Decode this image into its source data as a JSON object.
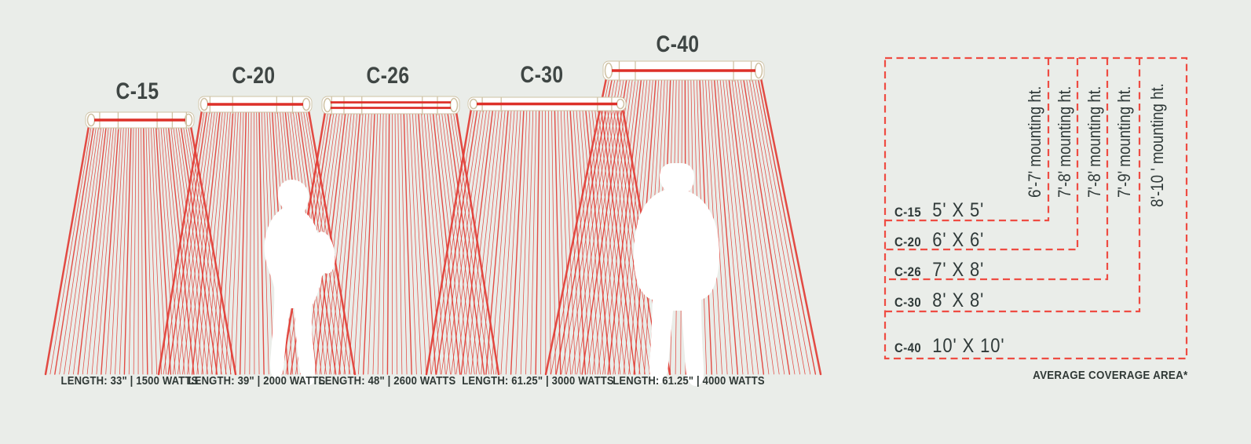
{
  "diagram": {
    "units": [
      {
        "model": "C-15",
        "spec": "LENGTH: 33\" | 1500 WATTS"
      },
      {
        "model": "C-20",
        "spec": "LENGTH: 39\" | 2000 WATTS"
      },
      {
        "model": "C-26",
        "spec": "LENGTH: 48\" | 2600 WATTS"
      },
      {
        "model": "C-30",
        "spec": "LENGTH: 61.25\" | 3000 WATTS"
      },
      {
        "model": "C-40",
        "spec": "LENGTH: 61.25\" | 4000 WATTS"
      }
    ]
  },
  "coverage": {
    "rows": [
      {
        "model": "C-15",
        "area": "5' X 5'",
        "mounting": "6'-7' mounting ht."
      },
      {
        "model": "C-20",
        "area": "6' X 6'",
        "mounting": "7'-8' mounting ht."
      },
      {
        "model": "C-26",
        "area": "7' X 8'",
        "mounting": "7'-8' mounting ht."
      },
      {
        "model": "C-30",
        "area": "8' X 8'",
        "mounting": "7'-9' mounting ht."
      },
      {
        "model": "C-40",
        "area": "10' X 10'",
        "mounting": "8'-10 ' mounting ht."
      }
    ],
    "footnote": "AVERAGE COVERAGE AREA*"
  },
  "colors": {
    "background": "#eaede9",
    "ray_red": "#e23d35",
    "element_red": "#dd3029",
    "dash_red": "#ef4c42",
    "guard_tan": "#cfc2a4",
    "heater_white": "#ffffff",
    "text_dark": "#3f4644",
    "text_darker": "#2f3938",
    "silhouette_white": "#ffffff"
  }
}
